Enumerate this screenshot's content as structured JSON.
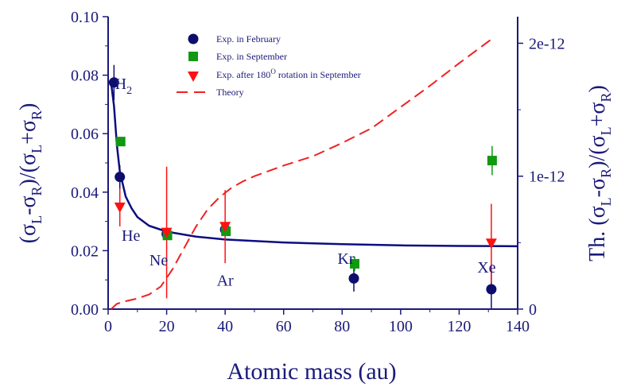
{
  "chart_data": {
    "type": "scatter",
    "xlabel": "Atomic mass (au)",
    "ylabel_left": "(σL-σR)/(σL+σR)",
    "ylabel_right": "Th. (σL-σR)/(σL+σR)",
    "xlim": [
      0,
      140
    ],
    "ylim_left": [
      0,
      0.1
    ],
    "ylim_right": [
      0,
      2.2e-12
    ],
    "x_ticks": [
      "0",
      "20",
      "40",
      "60",
      "80",
      "100",
      "120",
      "140"
    ],
    "y_ticks_left": [
      "0.00",
      "0.02",
      "0.04",
      "0.06",
      "0.08",
      "0.10"
    ],
    "y_ticks_right": [
      "0",
      "1e-12",
      "2e-12"
    ],
    "legend": {
      "feb": "Exp. in February",
      "sep": "Exp. in September",
      "rot_prefix": "Exp. after 180",
      "rot_sup": "O",
      "rot_suffix": " rotation in September",
      "theory": "Theory"
    },
    "colors": {
      "feb": "#0d0d6e",
      "sep": "#119911",
      "rot": "#ff1111",
      "theory": "#ee2222",
      "fit": "#0d0d80",
      "axis": "#1a1a7a"
    },
    "element_labels": [
      {
        "text": "H",
        "sub": "2",
        "x": 2,
        "y": 0.0775
      },
      {
        "text": "He",
        "x": 4,
        "y": 0.025
      },
      {
        "text": "Ne",
        "x": 20,
        "y": 0.015
      },
      {
        "text": "Ar",
        "x": 40,
        "y": 0.008
      },
      {
        "text": "Kr",
        "x": 84,
        "y": 0.0155
      },
      {
        "text": "Xe",
        "x": 131,
        "y": 0.0125
      }
    ],
    "series": [
      {
        "name": "Exp. in February",
        "marker": "circle",
        "points": [
          {
            "x": 2,
            "y": 0.0775,
            "err": 0.006
          },
          {
            "x": 4,
            "y": 0.0452,
            "err": 0.004
          },
          {
            "x": 20,
            "y": 0.0257,
            "err": 0.002
          },
          {
            "x": 40,
            "y": 0.0272,
            "err": 0.002
          },
          {
            "x": 84,
            "y": 0.0105,
            "err": 0.0045
          },
          {
            "x": 131,
            "y": 0.0068,
            "err": 0.0065
          }
        ]
      },
      {
        "name": "Exp. in September",
        "marker": "square",
        "points": [
          {
            "x": 4,
            "y": 0.0573,
            "err": 0
          },
          {
            "x": 20,
            "y": 0.0252,
            "err": 0
          },
          {
            "x": 40,
            "y": 0.0266,
            "err": 0
          },
          {
            "x": 84,
            "y": 0.0155,
            "err": 0.0025
          },
          {
            "x": 131,
            "y": 0.0508,
            "err": 0.005
          }
        ]
      },
      {
        "name": "Exp. after 180O rotation in September",
        "marker": "triangle-down",
        "points": [
          {
            "x": 4,
            "y": 0.0348,
            "err": 0.0065
          },
          {
            "x": 20,
            "y": 0.0262,
            "err": 0.0225
          },
          {
            "x": 40,
            "y": 0.0282,
            "err": 0.0125
          },
          {
            "x": 131,
            "y": 0.0225,
            "err": 0.0135
          }
        ]
      },
      {
        "name": "Theory",
        "axis": "right",
        "style": "dashed",
        "points": [
          {
            "x": 1,
            "y": 0.0
          },
          {
            "x": 3,
            "y": 4e-14
          },
          {
            "x": 6,
            "y": 6e-14
          },
          {
            "x": 10,
            "y": 8e-14
          },
          {
            "x": 14,
            "y": 1.1e-13
          },
          {
            "x": 18,
            "y": 1.7e-13
          },
          {
            "x": 22,
            "y": 3e-13
          },
          {
            "x": 26,
            "y": 4.6e-13
          },
          {
            "x": 30,
            "y": 6.2e-13
          },
          {
            "x": 34,
            "y": 7.5e-13
          },
          {
            "x": 38,
            "y": 8.4e-13
          },
          {
            "x": 42,
            "y": 9.1e-13
          },
          {
            "x": 46,
            "y": 9.6e-13
          },
          {
            "x": 50,
            "y": 1e-12
          },
          {
            "x": 60,
            "y": 1.08e-12
          },
          {
            "x": 70,
            "y": 1.15e-12
          },
          {
            "x": 80,
            "y": 1.25e-12
          },
          {
            "x": 90,
            "y": 1.36e-12
          },
          {
            "x": 100,
            "y": 1.52e-12
          },
          {
            "x": 110,
            "y": 1.68e-12
          },
          {
            "x": 120,
            "y": 1.85e-12
          },
          {
            "x": 131,
            "y": 2.03e-12
          }
        ]
      },
      {
        "name": "Fit",
        "style": "solid",
        "points": [
          {
            "x": 1,
            "y": 0.0775
          },
          {
            "x": 2,
            "y": 0.0695
          },
          {
            "x": 3,
            "y": 0.056
          },
          {
            "x": 4,
            "y": 0.047
          },
          {
            "x": 6,
            "y": 0.0385
          },
          {
            "x": 8,
            "y": 0.0345
          },
          {
            "x": 10,
            "y": 0.0315
          },
          {
            "x": 14,
            "y": 0.0285
          },
          {
            "x": 20,
            "y": 0.0265
          },
          {
            "x": 30,
            "y": 0.0248
          },
          {
            "x": 40,
            "y": 0.0238
          },
          {
            "x": 60,
            "y": 0.0228
          },
          {
            "x": 80,
            "y": 0.0222
          },
          {
            "x": 100,
            "y": 0.0218
          },
          {
            "x": 120,
            "y": 0.0216
          },
          {
            "x": 140,
            "y": 0.0215
          }
        ]
      }
    ]
  }
}
